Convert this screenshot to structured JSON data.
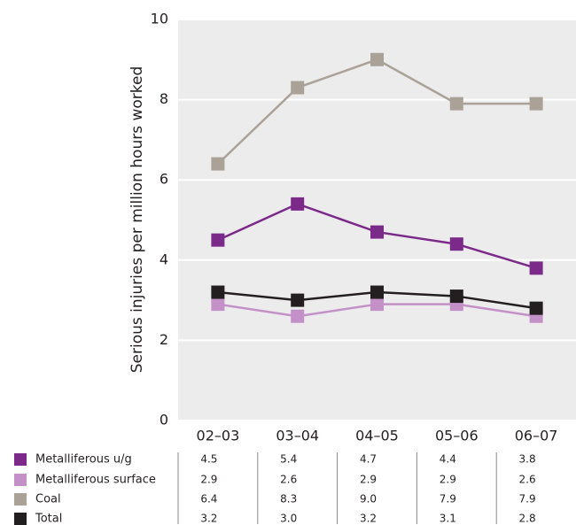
{
  "chart_data": {
    "type": "line",
    "y_label": "Serious injuries per million hours worked",
    "categories": [
      "02–03",
      "03–04",
      "04–05",
      "05–06",
      "06–07"
    ],
    "ylim": [
      0,
      10
    ],
    "yticks": [
      0,
      2,
      4,
      6,
      8,
      10
    ],
    "grid": true,
    "series": [
      {
        "name": "Metalliferous u/g",
        "color": "#7b2a8a",
        "values": [
          4.5,
          5.4,
          4.7,
          4.4,
          3.8
        ],
        "value_labels": [
          "4.5",
          "5.4",
          "4.7",
          "4.4",
          "3.8"
        ]
      },
      {
        "name": "Metalliferous surface",
        "color": "#c391c8",
        "values": [
          2.9,
          2.6,
          2.9,
          2.9,
          2.6
        ],
        "value_labels": [
          "2.9",
          "2.6",
          "2.9",
          "2.9",
          "2.6"
        ]
      },
      {
        "name": "Coal",
        "color": "#aaa197",
        "values": [
          6.4,
          8.3,
          9,
          7.9,
          7.9
        ],
        "value_labels": [
          "6.4",
          "8.3",
          "9.0",
          "7.9",
          "7.9"
        ]
      },
      {
        "name": "Total",
        "color": "#231f20",
        "values": [
          3.2,
          3,
          3.2,
          3.1,
          2.8
        ],
        "value_labels": [
          "3.2",
          "3.0",
          "3.2",
          "3.1",
          "2.8"
        ]
      }
    ]
  }
}
